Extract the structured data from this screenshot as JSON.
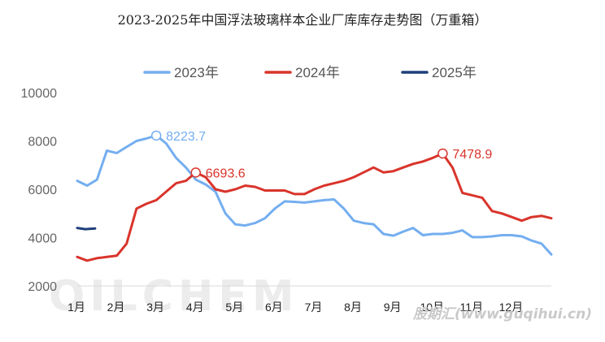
{
  "chart_data": {
    "type": "line",
    "title": "2023-2025年中国浮法玻璃样本企业厂库库存走势图（万重箱）",
    "xlabel": "",
    "ylabel": "",
    "ylim": [
      2000,
      10000
    ],
    "yticks": [
      "2000",
      "4000",
      "6000",
      "8000",
      "10000"
    ],
    "categories": [
      "1月",
      "2月",
      "3月",
      "4月",
      "5月",
      "6月",
      "7月",
      "8月",
      "9月",
      "10月",
      "11月",
      "12月"
    ],
    "x_range": [
      1,
      13
    ],
    "legend_position": "top",
    "grid": false,
    "series": [
      {
        "name": "2023年",
        "color": "#74aef0",
        "x": [
          1.0,
          1.25,
          1.5,
          1.75,
          2.0,
          2.25,
          2.5,
          2.75,
          3.0,
          3.25,
          3.5,
          3.75,
          4.0,
          4.25,
          4.5,
          4.75,
          5.0,
          5.25,
          5.5,
          5.75,
          6.0,
          6.25,
          6.5,
          6.75,
          7.0,
          7.25,
          7.5,
          7.75,
          8.0,
          8.25,
          8.5,
          8.75,
          9.0,
          9.25,
          9.5,
          9.75,
          10.0,
          10.25,
          10.5,
          10.75,
          11.0,
          11.25,
          11.5,
          11.75,
          12.0,
          12.25,
          12.5,
          12.75,
          13.0
        ],
        "values": [
          6350,
          6150,
          6400,
          7600,
          7500,
          7750,
          8000,
          8100,
          8223.7,
          7900,
          7300,
          6900,
          6400,
          6200,
          5900,
          5000,
          4550,
          4500,
          4600,
          4800,
          5200,
          5500,
          5480,
          5450,
          5500,
          5550,
          5580,
          5200,
          4700,
          4600,
          4550,
          4150,
          4080,
          4250,
          4400,
          4100,
          4150,
          4150,
          4200,
          4300,
          4020,
          4020,
          4050,
          4100,
          4100,
          4050,
          3880,
          3750,
          3300
        ]
      },
      {
        "name": "2024年",
        "color": "#d9342b",
        "x": [
          1.0,
          1.25,
          1.5,
          1.75,
          2.0,
          2.25,
          2.5,
          2.75,
          3.0,
          3.25,
          3.5,
          3.75,
          4.0,
          4.25,
          4.5,
          4.75,
          5.0,
          5.25,
          5.5,
          5.75,
          6.0,
          6.25,
          6.5,
          6.75,
          7.0,
          7.25,
          7.5,
          7.75,
          8.0,
          8.25,
          8.5,
          8.75,
          9.0,
          9.25,
          9.5,
          9.75,
          10.0,
          10.25,
          10.5,
          10.75,
          11.0,
          11.25,
          11.5,
          11.75,
          12.0,
          12.25,
          12.5,
          12.75,
          13.0
        ],
        "values": [
          3200,
          3050,
          3150,
          3200,
          3250,
          3750,
          5200,
          5400,
          5550,
          5900,
          6250,
          6350,
          6693.6,
          6500,
          6000,
          5900,
          6000,
          6150,
          6100,
          5950,
          5950,
          5950,
          5800,
          5800,
          6000,
          6150,
          6250,
          6350,
          6500,
          6700,
          6900,
          6700,
          6750,
          6900,
          7050,
          7150,
          7300,
          7478.9,
          6900,
          5850,
          5750,
          5650,
          5100,
          5000,
          4850,
          4700,
          4850,
          4900,
          4800
        ]
      },
      {
        "name": "2025年",
        "color": "#1f3f7a",
        "x": [
          1.0,
          1.2,
          1.45
        ],
        "values": [
          4400,
          4350,
          4380
        ]
      }
    ],
    "annotations": [
      {
        "series": "2023年",
        "label": "8223.7",
        "x": 3.0,
        "y": 8223.7
      },
      {
        "series": "2024年",
        "label": "6693.6",
        "x": 4.0,
        "y": 6693.6
      },
      {
        "series": "2024年",
        "label": "7478.9",
        "x": 10.25,
        "y": 7478.9
      }
    ]
  },
  "watermark": {
    "logo": "OILCHEM",
    "site": "股期汇(www.guqihui.cn)"
  }
}
